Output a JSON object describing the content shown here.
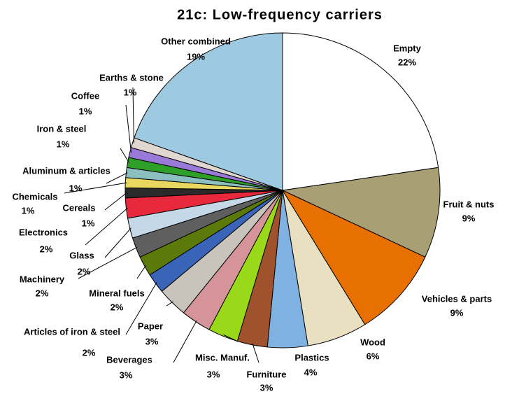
{
  "chart_data": {
    "type": "pie",
    "title": "21c: Low-frequency carriers",
    "categories": [
      "Empty",
      "Fruit & nuts",
      "Vehicles & parts",
      "Wood",
      "Plastics",
      "Furniture",
      "Misc. Manuf.",
      "Beverages",
      "Paper",
      "Articles of iron & steel",
      "Mineral fuels",
      "Machinery",
      "Glass",
      "Electronics",
      "Cereals",
      "Chemicals",
      "Aluminum & articles",
      "Iron & steel",
      "Coffee",
      "Earths & stone",
      "Other combined"
    ],
    "values": [
      22,
      9,
      9,
      6,
      4,
      3,
      3,
      3,
      3,
      2,
      2,
      2,
      2,
      2,
      1,
      1,
      1,
      1,
      1,
      1,
      19
    ],
    "value_labels": [
      "22%",
      "9%",
      "9%",
      "6%",
      "4%",
      "3%",
      "3%",
      "3%",
      "3%",
      "2%",
      "2%",
      "2%",
      "2%",
      "2%",
      "1%",
      "1%",
      "1%",
      "1%",
      "1%",
      "1%",
      "19%"
    ],
    "colors": [
      "#ffffff",
      "#a89f74",
      "#e87000",
      "#e8e0c0",
      "#7fb2e0",
      "#a0522d",
      "#99d91a",
      "#d4949a",
      "#c8c4bc",
      "#3a64b8",
      "#5c7a0a",
      "#5f5f5f",
      "#c4d8e8",
      "#e8283c",
      "#2a2a2a",
      "#e8d860",
      "#8cc0c0",
      "#2ea02a",
      "#9a7ad8",
      "#e0d8d0",
      "#9ecae1"
    ]
  }
}
